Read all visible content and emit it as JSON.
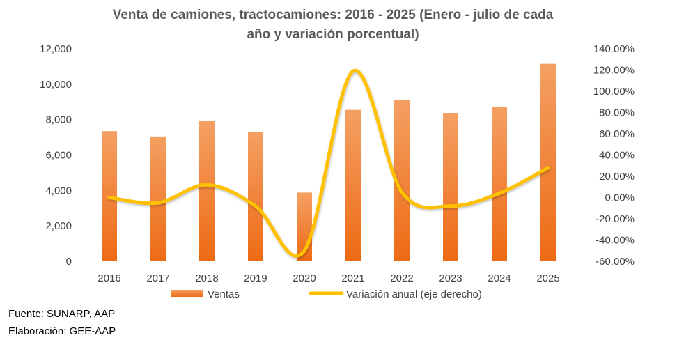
{
  "chart_data": {
    "type": "bar",
    "title_line1": "Venta de camiones, tractocamiones: 2016 - 2025 (Enero - julio de cada",
    "title_line2": "año y variación porcentual)",
    "categories": [
      "2016",
      "2017",
      "2018",
      "2019",
      "2020",
      "2021",
      "2022",
      "2023",
      "2024",
      "2025"
    ],
    "series": [
      {
        "name": "Ventas",
        "type": "bar",
        "axis": "left",
        "values": [
          7350,
          7050,
          7950,
          7280,
          3880,
          8550,
          9120,
          8380,
          8730,
          11150
        ]
      },
      {
        "name": "Variación anual (eje derecho)",
        "type": "line",
        "axis": "right",
        "values": [
          0.0,
          -5.0,
          12.0,
          -8.0,
          -50.0,
          119.0,
          5.0,
          -8.0,
          4.0,
          28.0
        ]
      }
    ],
    "ylim_left": [
      0,
      12000
    ],
    "ylim_right": [
      -60,
      140
    ],
    "left_ticks": [
      "0",
      "2,000",
      "4,000",
      "6,000",
      "8,000",
      "10,000",
      "12,000"
    ],
    "right_ticks": [
      "-60.00%",
      "-40.00%",
      "-20.00%",
      "0.00%",
      "20.00%",
      "40.00%",
      "60.00%",
      "80.00%",
      "100.00%",
      "120.00%",
      "140.00%"
    ],
    "legend_position": "bottom",
    "colors": {
      "bar_top": "#f4a063",
      "bar_bottom": "#ee6a14",
      "line": "#ffc000"
    }
  },
  "notes": {
    "source": "Fuente: SUNARP, AAP",
    "elaboration": "Elaboración: GEE-AAP"
  }
}
